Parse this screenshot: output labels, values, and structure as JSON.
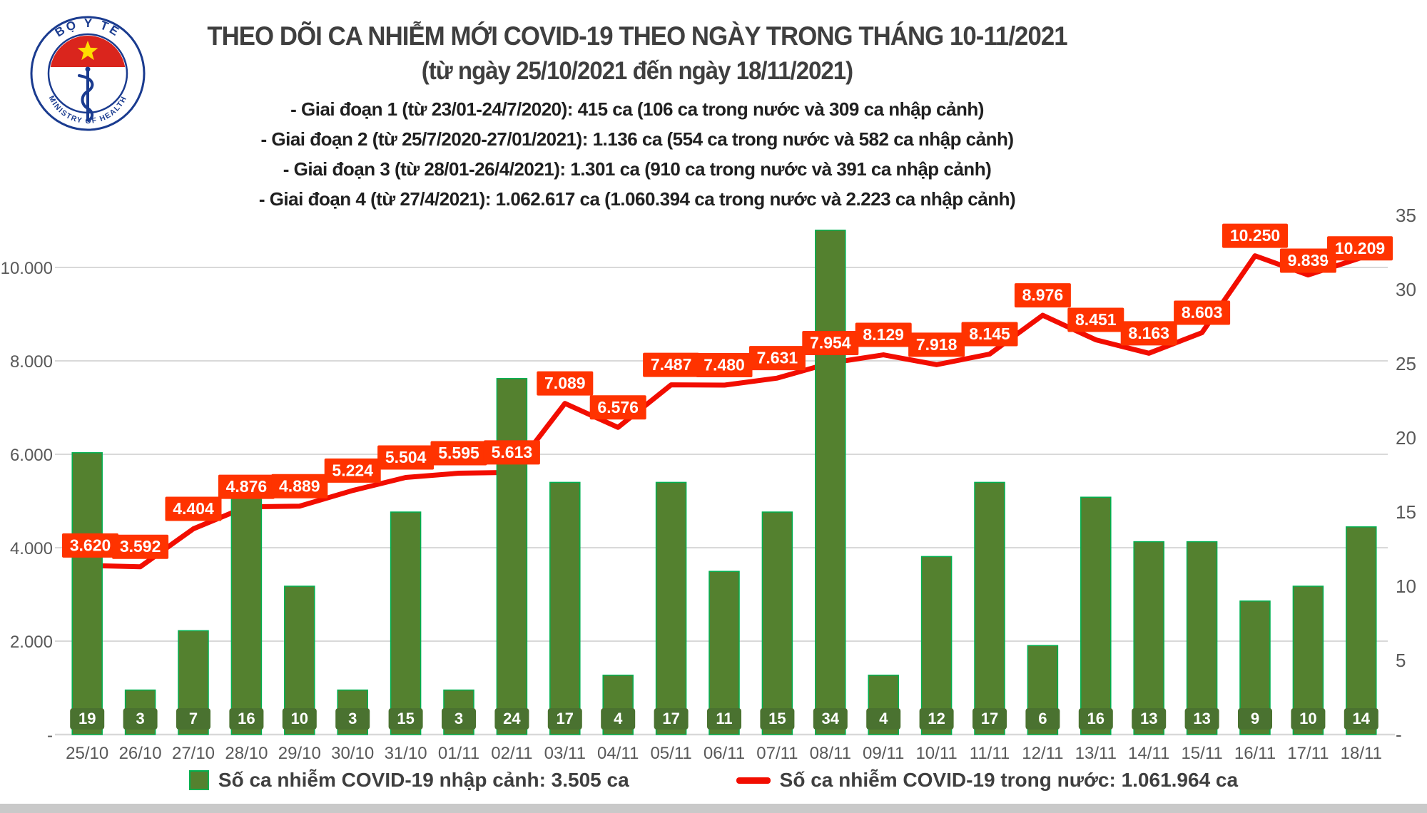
{
  "header": {
    "logo": {
      "arc_top": "BỘ Y TẾ",
      "arc_bottom": "MINISTRY OF HEALTH"
    },
    "title_line1": "THEO DÕI CA NHIỄM MỚI COVID-19 THEO NGÀY TRONG THÁNG 10-11/2021",
    "title_line2": "(từ ngày 25/10/2021 đến ngày 18/11/2021)",
    "phase_lines": [
      "- Giai đoạn 1 (từ 23/01-24/7/2020): 415 ca (106 ca trong nước và 309 ca nhập cảnh)",
      "- Giai đoạn 2 (từ 25/7/2020-27/01/2021): 1.136 ca (554 ca trong nước và 582 ca nhập cảnh)",
      "- Giai đoạn 3 (từ 28/01-26/4/2021): 1.301 ca (910 ca trong nước và 391 ca nhập cảnh)",
      "- Giai đoạn 4 (từ 27/4/2021): 1.062.617 ca (1.060.394 ca trong nước và 2.223 ca nhập cảnh)"
    ]
  },
  "chart_data": {
    "type": "bar",
    "subtype": "dual-axis bar+line combo",
    "categories": [
      "25/10",
      "26/10",
      "27/10",
      "28/10",
      "29/10",
      "30/10",
      "31/10",
      "01/11",
      "02/11",
      "03/11",
      "04/11",
      "05/11",
      "06/11",
      "07/11",
      "08/11",
      "09/11",
      "10/11",
      "11/11",
      "12/11",
      "13/11",
      "14/11",
      "15/11",
      "16/11",
      "17/11",
      "18/11"
    ],
    "series": [
      {
        "name": "Số ca nhiễm COVID-19 nhập cảnh",
        "type": "bar",
        "axis": "right",
        "color": "#54812F",
        "edge_color": "#00B050",
        "badge_color": "#4A7230",
        "values": [
          19,
          3,
          7,
          16,
          10,
          3,
          15,
          3,
          24,
          17,
          4,
          17,
          11,
          15,
          34,
          4,
          12,
          17,
          6,
          16,
          13,
          13,
          9,
          10,
          14
        ]
      },
      {
        "name": "Số ca nhiễm COVID-19 trong nước",
        "type": "line",
        "axis": "left",
        "color": "#F20D00",
        "label_bg": "#FF3300",
        "values": [
          3620,
          3592,
          4404,
          4876,
          4889,
          5224,
          5504,
          5595,
          5613,
          7089,
          6576,
          7487,
          7480,
          7631,
          7954,
          8129,
          7918,
          8145,
          8976,
          8451,
          8163,
          8603,
          10250,
          9839,
          10209
        ],
        "data_labels": [
          "3.620",
          "3.592",
          "4.404",
          "4.876",
          "4.889",
          "5.224",
          "5.504",
          "5.595",
          "5.613",
          "7.089",
          "6.576",
          "7.487",
          "7.480",
          "7.631",
          "7.954",
          "8.129",
          "7.918",
          "8.145",
          "8.976",
          "8.451",
          "8.163",
          "8.603",
          "10.250",
          "9.839",
          "10.209"
        ]
      }
    ],
    "left_axis": {
      "tick_labels": [
        "10.000",
        "8.000",
        "6.000",
        "4.000",
        "2.000",
        "-"
      ],
      "range": [
        0,
        12000
      ],
      "gridline_step": 2000
    },
    "right_axis": {
      "tick_labels": [
        "35",
        "30",
        "25",
        "20",
        "15",
        "10",
        "5",
        "-"
      ],
      "range": [
        0,
        38
      ]
    },
    "grid": true,
    "gridline_color": "#d9d9d9",
    "axis_text_color": "#595959",
    "legend_position": "bottom"
  },
  "legend": {
    "items": [
      {
        "swatch": "green-square",
        "label": "Số ca nhiễm COVID-19 nhập cảnh: 3.505 ca"
      },
      {
        "swatch": "red-dash",
        "label": "Số ca nhiễm COVID-19 trong nước: 1.061.964 ca"
      }
    ]
  }
}
